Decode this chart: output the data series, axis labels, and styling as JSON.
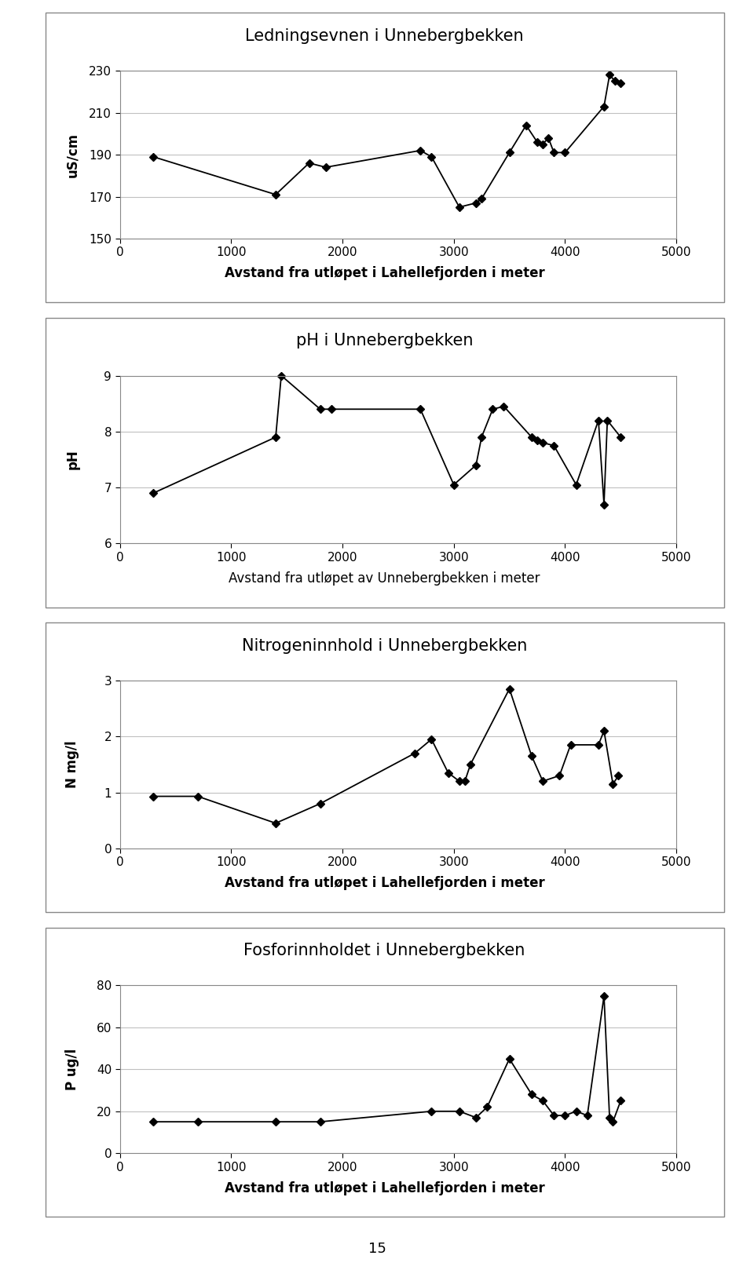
{
  "chart1": {
    "title": "Ledningsevnen i Unnebergbekken",
    "ylabel": "uS/cm",
    "xlabel": "Avstand fra utløpet i Lahellefjorden i meter",
    "xlabel_bold": true,
    "x": [
      300,
      1400,
      1700,
      1850,
      2700,
      2800,
      3050,
      3200,
      3250,
      3500,
      3650,
      3750,
      3800,
      3850,
      3900,
      4000,
      4350,
      4400,
      4450,
      4500
    ],
    "y": [
      189,
      171,
      186,
      184,
      192,
      189,
      165,
      167,
      169,
      191,
      204,
      196,
      195,
      198,
      191,
      191,
      213,
      228,
      225,
      224
    ],
    "ylim": [
      150,
      230
    ],
    "yticks": [
      150,
      170,
      190,
      210,
      230
    ],
    "xlim": [
      0,
      5000
    ],
    "xticks": [
      0,
      1000,
      2000,
      3000,
      4000,
      5000
    ]
  },
  "chart2": {
    "title": "pH i Unnebergbekken",
    "ylabel": "pH",
    "xlabel": "Avstand fra utløpet av Unnebergbekken i meter",
    "xlabel_bold": false,
    "x": [
      300,
      1400,
      1450,
      1800,
      1900,
      2700,
      3000,
      3200,
      3250,
      3350,
      3450,
      3700,
      3750,
      3800,
      3900,
      4100,
      4300,
      4350,
      4380,
      4500
    ],
    "y": [
      6.9,
      7.9,
      9.0,
      8.4,
      8.4,
      8.4,
      7.05,
      7.4,
      7.9,
      8.4,
      8.45,
      7.9,
      7.85,
      7.8,
      7.75,
      7.05,
      8.2,
      6.7,
      8.2,
      7.9
    ],
    "ylim": [
      6,
      9
    ],
    "yticks": [
      6,
      7,
      8,
      9
    ],
    "xlim": [
      0,
      5000
    ],
    "xticks": [
      0,
      1000,
      2000,
      3000,
      4000,
      5000
    ]
  },
  "chart3": {
    "title": "Nitrogeninnhold i Unnebergbekken",
    "ylabel": "N mg/l",
    "xlabel": "Avstand fra utløpet i Lahellefjorden i meter",
    "xlabel_bold": true,
    "x": [
      300,
      700,
      1400,
      1800,
      2650,
      2800,
      2950,
      3050,
      3100,
      3150,
      3500,
      3700,
      3800,
      3950,
      4050,
      4300,
      4350,
      4430,
      4480
    ],
    "y": [
      0.93,
      0.93,
      0.45,
      0.8,
      1.7,
      1.95,
      1.35,
      1.2,
      1.2,
      1.5,
      2.85,
      1.65,
      1.2,
      1.3,
      1.85,
      1.85,
      2.1,
      1.15,
      1.3
    ],
    "ylim": [
      0,
      3
    ],
    "yticks": [
      0,
      1,
      2,
      3
    ],
    "xlim": [
      0,
      5000
    ],
    "xticks": [
      0,
      1000,
      2000,
      3000,
      4000,
      5000
    ]
  },
  "chart4": {
    "title": "Fosforinnholdet i Unnebergbekken",
    "ylabel": "P ug/l",
    "xlabel": "Avstand fra utløpet i Lahellefjorden i meter",
    "xlabel_bold": true,
    "x": [
      300,
      700,
      1400,
      1800,
      2800,
      3050,
      3200,
      3300,
      3500,
      3700,
      3800,
      3900,
      4000,
      4100,
      4200,
      4350,
      4400,
      4430,
      4500
    ],
    "y": [
      15,
      15,
      15,
      15,
      20,
      20,
      17,
      22,
      45,
      28,
      25,
      18,
      18,
      20,
      18,
      75,
      17,
      15,
      25
    ],
    "ylim": [
      0,
      80
    ],
    "yticks": [
      0,
      20,
      40,
      60,
      80
    ],
    "xlim": [
      0,
      5000
    ],
    "xticks": [
      0,
      1000,
      2000,
      3000,
      4000,
      5000
    ]
  },
  "line_color": "#000000",
  "marker": "D",
  "markersize": 5,
  "linewidth": 1.3,
  "bg_color": "#ffffff",
  "panel_bg": "#ffffff",
  "grid_color": "#c0c0c0",
  "title_fontsize": 15,
  "label_fontsize": 12,
  "tick_fontsize": 11,
  "page_number": "15"
}
